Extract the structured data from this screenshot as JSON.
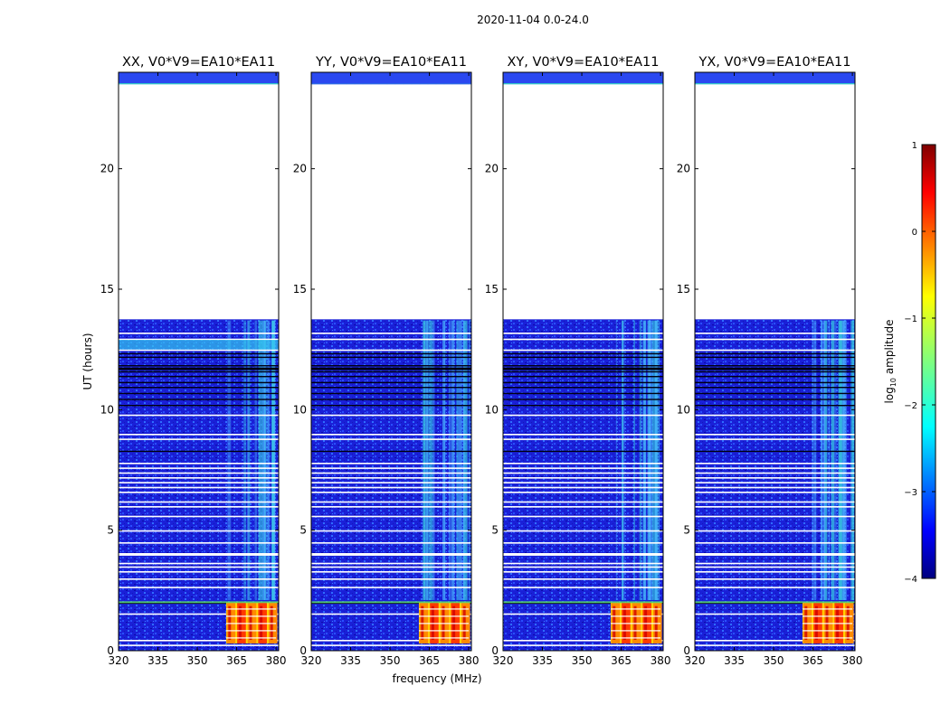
{
  "figure_title": "2020-11-04 0.0-24.0",
  "chart_data": {
    "type": "heatmap",
    "suptitle": "2020-11-04 0.0-24.0",
    "xlabel": "frequency (MHz)",
    "ylabel": "UT (hours)",
    "xlim": [
      320,
      381
    ],
    "ylim": [
      0,
      24
    ],
    "xticks": [
      320,
      335,
      350,
      365,
      380
    ],
    "yticks": [
      0,
      5,
      10,
      15,
      20
    ],
    "panels": [
      {
        "title": "XX, V0*V9=EA10*EA11",
        "polarization": "XX"
      },
      {
        "title": "YY, V0*V9=EA10*EA11",
        "polarization": "YY"
      },
      {
        "title": "XY, V0*V9=EA10*EA11",
        "polarization": "XY"
      },
      {
        "title": "YX, V0*V9=EA10*EA11",
        "polarization": "YX"
      }
    ],
    "data_gaps_hours": [
      [
        13.75,
        23.5
      ]
    ],
    "bright_band_hours": [
      0.3,
      2.0
    ],
    "bright_band_freq_mhz": [
      361,
      380
    ],
    "colorbar": {
      "label_prefix": "log",
      "label_subscript": "10",
      "label_suffix": " amplitude",
      "range": [
        -4,
        1
      ],
      "ticks": [
        -4,
        -3,
        -2,
        -1,
        0,
        1
      ],
      "tick_labels": [
        "−4",
        "−3",
        "−2",
        "−1",
        "0",
        "1"
      ],
      "colormap": "jet"
    }
  }
}
